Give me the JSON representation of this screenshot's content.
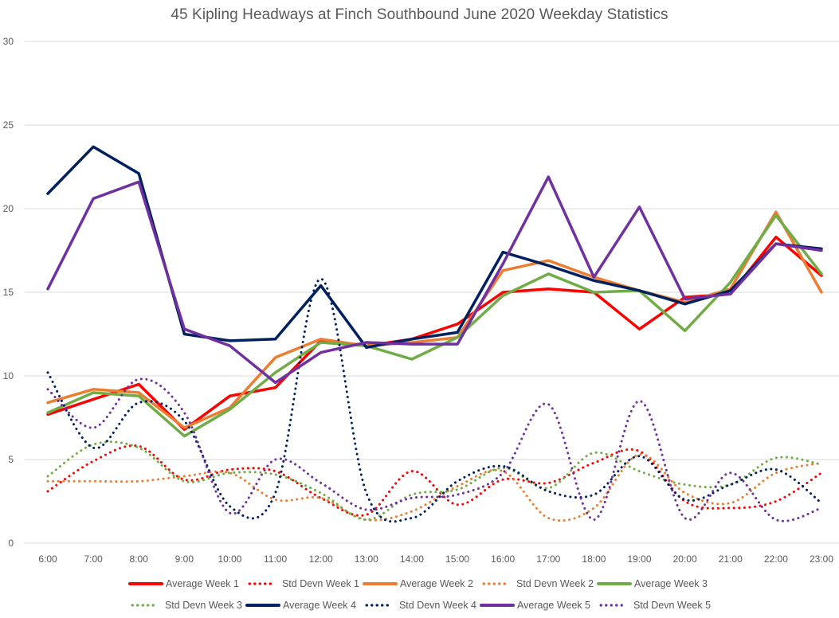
{
  "chart_data": {
    "type": "line",
    "title": "45 Kipling Headways at Finch Southbound June 2020 Weekday Statistics",
    "xlabel": "",
    "ylabel": "",
    "ylim": [
      0,
      30
    ],
    "yticks": [
      "0",
      "5",
      "10",
      "15",
      "20",
      "25",
      "30"
    ],
    "grid": true,
    "legend_position": "bottom",
    "categories": [
      "6:00",
      "7:00",
      "8:00",
      "9:00",
      "10:00",
      "11:00",
      "12:00",
      "13:00",
      "14:00",
      "15:00",
      "16:00",
      "17:00",
      "18:00",
      "19:00",
      "20:00",
      "21:00",
      "22:00",
      "23:00"
    ],
    "series": [
      {
        "name": "Average Week 1",
        "color": "#ff0000",
        "style": "solid",
        "values": [
          7.7,
          8.6,
          9.5,
          6.8,
          8.8,
          9.3,
          12.1,
          11.8,
          12.2,
          13.1,
          15.0,
          15.2,
          15.0,
          12.8,
          14.7,
          14.9,
          18.3,
          16.0
        ]
      },
      {
        "name": "Std Devn Week 1",
        "color": "#ff0000",
        "style": "dotted",
        "values": [
          3.1,
          4.9,
          5.8,
          3.8,
          4.4,
          4.3,
          2.7,
          1.7,
          4.3,
          2.3,
          3.8,
          3.6,
          4.8,
          5.5,
          2.5,
          2.1,
          2.5,
          4.2
        ]
      },
      {
        "name": "Average Week 2",
        "color": "#ed7d31",
        "style": "solid",
        "values": [
          8.4,
          9.2,
          9.0,
          6.9,
          8.1,
          11.1,
          12.2,
          11.8,
          12.0,
          12.3,
          16.3,
          16.9,
          15.9,
          15.1,
          14.4,
          15.2,
          19.8,
          15.0
        ]
      },
      {
        "name": "Std Devn Week 2",
        "color": "#ed7d31",
        "style": "dotted",
        "values": [
          3.7,
          3.7,
          3.7,
          4.0,
          4.2,
          2.6,
          2.7,
          1.4,
          1.9,
          3.4,
          4.3,
          1.5,
          2.1,
          5.3,
          3.0,
          2.4,
          4.2,
          4.8
        ]
      },
      {
        "name": "Average Week 3",
        "color": "#70ad47",
        "style": "solid",
        "values": [
          7.8,
          9.0,
          8.8,
          6.4,
          8.0,
          10.2,
          12.0,
          11.8,
          11.0,
          12.3,
          14.8,
          16.1,
          15.0,
          15.1,
          12.7,
          15.6,
          19.6,
          16.1
        ]
      },
      {
        "name": "Std Devn Week 3",
        "color": "#70ad47",
        "style": "dotted",
        "values": [
          4.0,
          5.9,
          5.7,
          3.7,
          4.2,
          4.1,
          3.0,
          1.4,
          2.9,
          3.2,
          4.5,
          3.3,
          5.4,
          4.3,
          3.5,
          3.5,
          5.1,
          4.7
        ]
      },
      {
        "name": "Average Week 4",
        "color": "#002060",
        "style": "solid",
        "values": [
          20.9,
          23.7,
          22.1,
          12.5,
          12.1,
          12.2,
          15.4,
          11.7,
          12.2,
          12.6,
          17.4,
          16.6,
          15.7,
          15.1,
          14.3,
          15.1,
          17.9,
          17.6
        ]
      },
      {
        "name": "Std Devn Week 4",
        "color": "#002060",
        "style": "dotted",
        "values": [
          10.2,
          5.7,
          8.4,
          7.3,
          2.2,
          3.0,
          15.8,
          3.0,
          1.5,
          3.7,
          4.6,
          3.1,
          2.9,
          5.2,
          2.6,
          3.5,
          4.4,
          2.4
        ]
      },
      {
        "name": "Average Week 5",
        "color": "#7030a0",
        "style": "solid",
        "values": [
          15.2,
          20.6,
          21.6,
          12.8,
          11.8,
          9.6,
          11.4,
          12.0,
          11.9,
          11.9,
          16.7,
          21.9,
          15.9,
          20.1,
          14.6,
          14.9,
          17.9,
          17.5
        ]
      },
      {
        "name": "Std Devn Week 5",
        "color": "#7030a0",
        "style": "dotted",
        "values": [
          9.2,
          6.9,
          9.8,
          7.8,
          1.8,
          5.0,
          3.6,
          2.0,
          2.7,
          2.9,
          4.2,
          8.3,
          1.4,
          8.5,
          1.5,
          4.2,
          1.4,
          2.1
        ]
      }
    ]
  }
}
